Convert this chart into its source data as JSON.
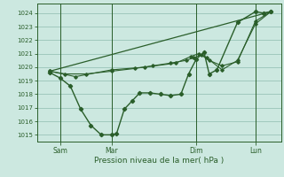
{
  "bg_color": "#cce8e0",
  "grid_color": "#99c4b8",
  "line_color": "#2a5e2a",
  "xlabel": "Pression niveau de la mer( hPa )",
  "ylim": [
    1014.5,
    1024.7
  ],
  "yticks": [
    1015,
    1016,
    1017,
    1018,
    1019,
    1020,
    1021,
    1022,
    1023,
    1024
  ],
  "xlim": [
    0,
    9.5
  ],
  "xtick_positions": [
    0.9,
    2.9,
    6.2,
    8.5
  ],
  "xtick_labels": [
    "Sam",
    "Mar",
    "Dim",
    "Lun"
  ],
  "vline_positions": [
    0.9,
    2.9,
    6.2,
    8.5
  ],
  "series_main_x": [
    0.5,
    0.9,
    1.3,
    1.7,
    2.1,
    2.5,
    2.9,
    3.1,
    3.4,
    3.7,
    4.0,
    4.4,
    4.8,
    5.2,
    5.6,
    5.9,
    6.2,
    6.5,
    6.7,
    7.0,
    7.8,
    8.5,
    8.8,
    9.1
  ],
  "series_main_y": [
    1019.6,
    1019.2,
    1018.6,
    1016.9,
    1015.7,
    1015.0,
    1015.0,
    1015.1,
    1016.9,
    1017.5,
    1018.1,
    1018.1,
    1018.0,
    1017.9,
    1018.0,
    1019.5,
    1020.6,
    1021.1,
    1019.5,
    1019.8,
    1023.3,
    1024.1,
    1024.0,
    1024.1
  ],
  "series_trend_x": [
    0.5,
    9.1
  ],
  "series_trend_y": [
    1019.7,
    1024.1
  ],
  "series_smooth_x": [
    0.5,
    1.1,
    1.9,
    2.9,
    3.8,
    4.5,
    5.2,
    5.8,
    6.1,
    6.4,
    6.7,
    7.2,
    7.8,
    8.5,
    9.1
  ],
  "series_smooth_y": [
    1019.7,
    1019.5,
    1019.5,
    1019.7,
    1019.9,
    1020.1,
    1020.3,
    1020.5,
    1020.7,
    1020.9,
    1020.5,
    1020.1,
    1020.4,
    1023.4,
    1024.1
  ],
  "series_mid_x": [
    0.5,
    1.5,
    2.9,
    4.2,
    5.4,
    6.0,
    6.3,
    6.6,
    7.2,
    7.8,
    8.5,
    9.1
  ],
  "series_mid_y": [
    1019.7,
    1019.3,
    1019.8,
    1020.0,
    1020.3,
    1020.8,
    1021.0,
    1020.7,
    1019.8,
    1020.5,
    1023.2,
    1024.1
  ]
}
